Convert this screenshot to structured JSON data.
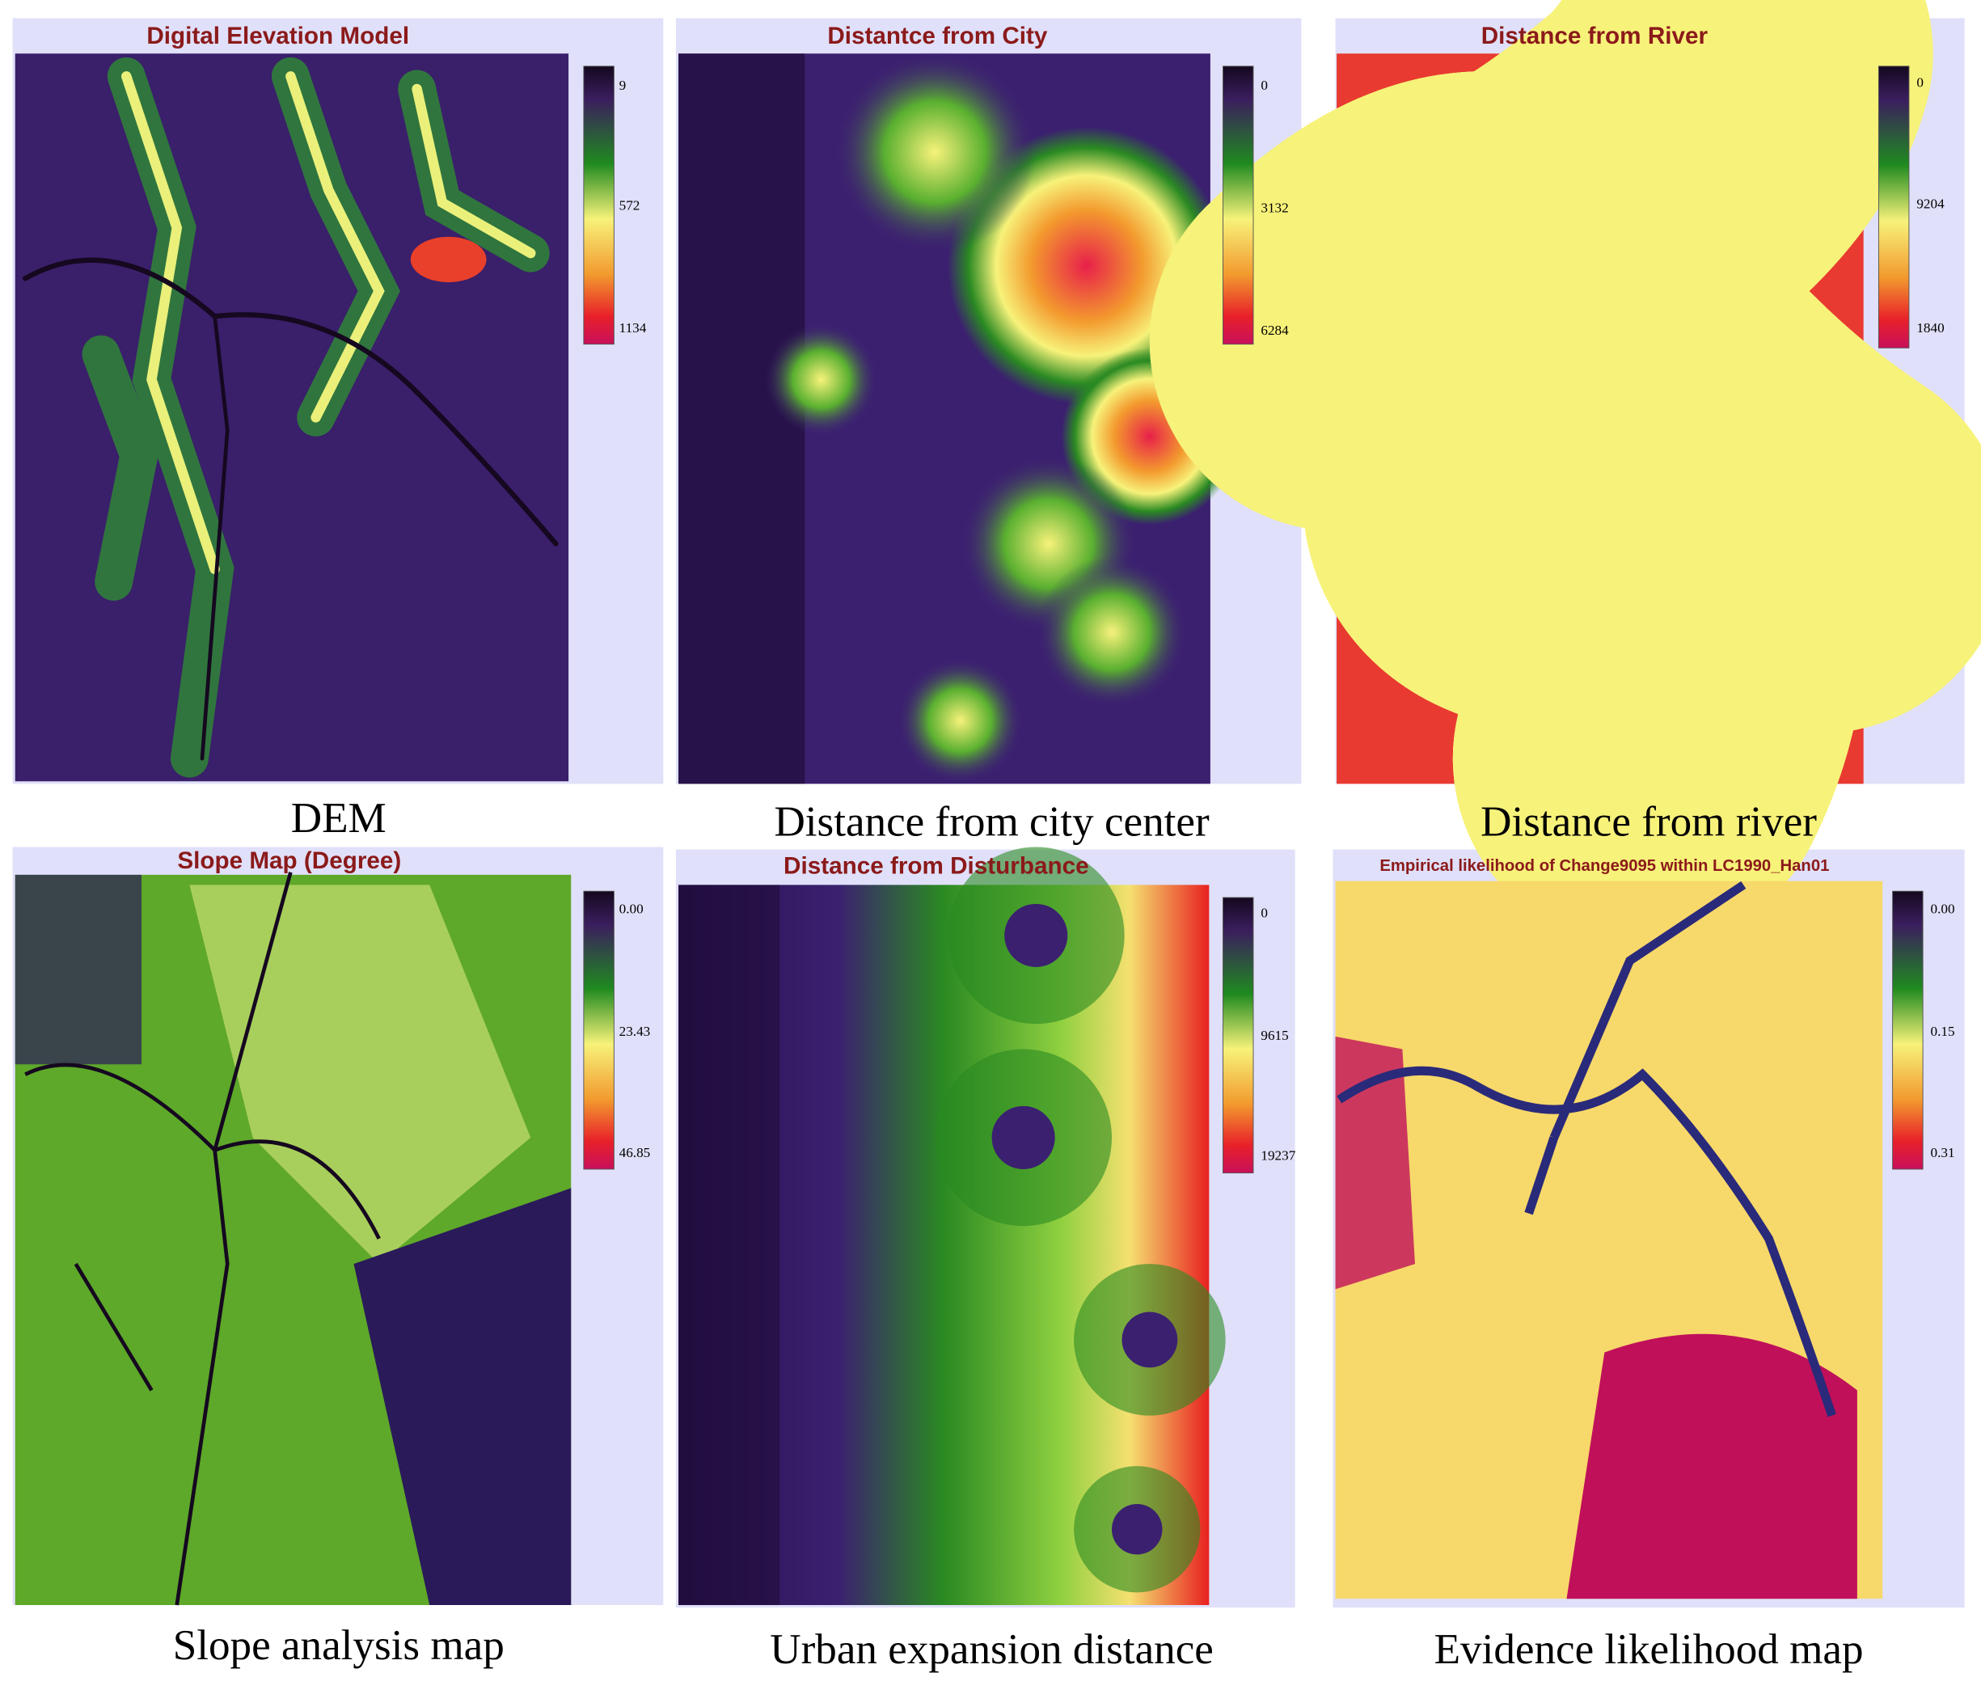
{
  "panels": [
    {
      "title": "Digital Elevation Model",
      "legend_labels": [
        "9",
        "572",
        "1134"
      ],
      "caption": "DEM"
    },
    {
      "title": "Distantce from City",
      "legend_labels": [
        "0",
        "3132",
        "6284"
      ],
      "caption": "Distance from city center"
    },
    {
      "title": "Distance from River",
      "legend_labels": [
        "0",
        "9204",
        "1840"
      ],
      "caption": "Distance from river"
    },
    {
      "title": "Slope Map (Degree)",
      "legend_labels": [
        "0.00",
        "23.43",
        "46.85"
      ],
      "caption": "Slope analysis map"
    },
    {
      "title": "Distance from Disturbance",
      "legend_labels": [
        "0",
        "9615",
        "19237"
      ],
      "caption": "Urban expansion distance"
    },
    {
      "title": "Empirical likelihood of Change9095 within LC1990_Han01",
      "legend_labels": [
        "0.00",
        "0.15",
        "0.31"
      ],
      "caption": "Evidence likelihood map"
    }
  ]
}
